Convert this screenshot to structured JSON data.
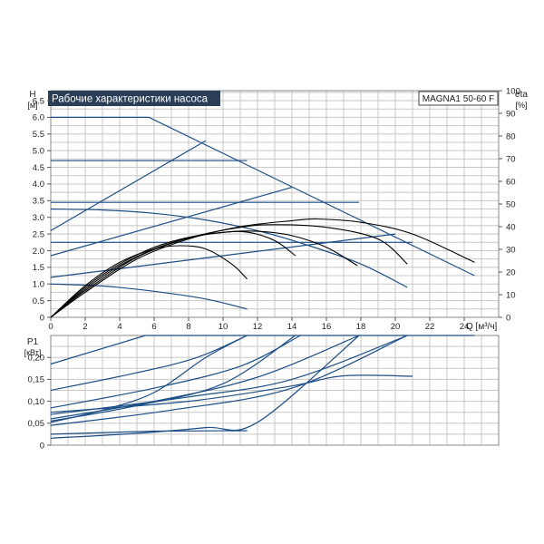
{
  "title": "Рабочие характеристики насоса",
  "model": "MAGNA1 50-60 F",
  "colors": {
    "curve_blue": "#1c4e86",
    "curve_black": "#000000",
    "grid": "#c8c8c8",
    "title_bg": "#2a3f57",
    "title_fg": "#ffffff"
  },
  "chart_data": [
    {
      "id": "head",
      "type": "line",
      "x_label": "Q [м³/ч]",
      "y_label": "H",
      "y_unit": "[м]",
      "y2_label": "eta",
      "y2_unit": "[%]",
      "xlim": [
        0,
        26
      ],
      "ylim": [
        0,
        6.8
      ],
      "y2lim": [
        0,
        100
      ],
      "x_ticks": [
        0,
        2,
        4,
        6,
        8,
        10,
        12,
        14,
        16,
        18,
        20,
        22,
        24
      ],
      "y_ticks": [
        "0",
        "0.5",
        "1.0",
        "1.5",
        "2.0",
        "2.5",
        "3.0",
        "3.5",
        "4.0",
        "4.5",
        "5.0",
        "5.5",
        "6.0",
        "6.5"
      ],
      "y_tick_values": [
        0,
        0.5,
        1.0,
        1.5,
        2.0,
        2.5,
        3.0,
        3.5,
        4.0,
        4.5,
        5.0,
        5.5,
        6.0,
        6.5
      ],
      "y2_ticks": [
        0,
        10,
        20,
        30,
        40,
        50,
        60,
        70,
        80,
        90,
        100
      ],
      "grid": true,
      "series": [
        {
          "color": "blue",
          "points": [
            [
              0,
              6.0
            ],
            [
              5.7,
              6.0
            ],
            [
              24.6,
              1.25
            ]
          ]
        },
        {
          "color": "blue",
          "points": [
            [
              0,
              4.7
            ],
            [
              11.4,
              4.7
            ]
          ]
        },
        {
          "color": "blue",
          "points": [
            [
              0,
              3.45
            ],
            [
              17.9,
              3.45
            ]
          ]
        },
        {
          "color": "blue",
          "points": [
            [
              0,
              2.25
            ],
            [
              21,
              2.25
            ]
          ]
        },
        {
          "color": "blue",
          "points": [
            [
              0,
              2.6
            ],
            [
              9,
              5.3
            ]
          ]
        },
        {
          "color": "blue",
          "points": [
            [
              0,
              1.85
            ],
            [
              14,
              3.9
            ]
          ]
        },
        {
          "color": "blue",
          "points": [
            [
              0,
              1.2
            ],
            [
              20,
              2.5
            ]
          ]
        },
        {
          "color": "blue",
          "points": [
            [
              0,
              3.25
            ],
            [
              3,
              3.22
            ],
            [
              6,
              3.12
            ],
            [
              9,
              2.92
            ],
            [
              12,
              2.6
            ],
            [
              15,
              2.15
            ],
            [
              18,
              1.6
            ],
            [
              20.7,
              0.9
            ]
          ]
        },
        {
          "color": "blue",
          "points": [
            [
              0,
              1.0
            ],
            [
              3,
              0.94
            ],
            [
              6,
              0.78
            ],
            [
              9,
              0.55
            ],
            [
              11.4,
              0.25
            ]
          ]
        },
        {
          "color": "black",
          "points": [
            [
              0,
              0
            ],
            [
              2,
              0.75
            ],
            [
              5,
              1.75
            ],
            [
              8,
              2.35
            ],
            [
              11,
              2.72
            ],
            [
              14,
              2.9
            ],
            [
              15.5,
              2.95
            ],
            [
              18,
              2.85
            ],
            [
              21,
              2.5
            ],
            [
              24.6,
              1.65
            ]
          ]
        },
        {
          "color": "black",
          "points": [
            [
              0,
              0
            ],
            [
              2,
              0.8
            ],
            [
              5,
              1.8
            ],
            [
              8,
              2.38
            ],
            [
              11,
              2.7
            ],
            [
              13,
              2.78
            ],
            [
              16,
              2.7
            ],
            [
              19,
              2.35
            ],
            [
              20.7,
              1.6
            ]
          ]
        },
        {
          "color": "black",
          "points": [
            [
              0,
              0
            ],
            [
              2,
              0.85
            ],
            [
              4,
              1.55
            ],
            [
              6,
              2.05
            ],
            [
              8,
              2.38
            ],
            [
              10,
              2.55
            ],
            [
              12,
              2.58
            ],
            [
              14,
              2.45
            ],
            [
              16,
              2.1
            ],
            [
              17.8,
              1.55
            ]
          ]
        },
        {
          "color": "black",
          "points": [
            [
              0,
              0
            ],
            [
              2,
              0.9
            ],
            [
              4,
              1.6
            ],
            [
              6,
              2.1
            ],
            [
              8,
              2.4
            ],
            [
              10,
              2.55
            ],
            [
              11.5,
              2.55
            ],
            [
              13,
              2.3
            ],
            [
              14.2,
              1.85
            ]
          ]
        },
        {
          "color": "black",
          "points": [
            [
              0,
              0
            ],
            [
              2,
              0.95
            ],
            [
              4,
              1.65
            ],
            [
              6,
              2.05
            ],
            [
              7.5,
              2.15
            ],
            [
              9,
              2.05
            ],
            [
              10.5,
              1.6
            ],
            [
              11.4,
              1.15
            ]
          ]
        }
      ]
    },
    {
      "id": "power",
      "type": "line",
      "y_label": "P1",
      "y_unit": "[кВт]",
      "xlim": [
        0,
        26
      ],
      "ylim": [
        0,
        0.25
      ],
      "y_ticks": [
        "0",
        "0,05",
        "0,10",
        "0,15",
        "0,20"
      ],
      "y_tick_values": [
        0,
        0.05,
        0.1,
        0.15,
        0.2
      ],
      "grid": true,
      "series": [
        {
          "color": "blue",
          "points": [
            [
              0,
              0.185
            ],
            [
              5.5,
              0.25
            ],
            [
              24.6,
              0.25
            ]
          ]
        },
        {
          "color": "blue",
          "points": [
            [
              0,
              0.125
            ],
            [
              5,
              0.165
            ],
            [
              8.5,
              0.2
            ],
            [
              11.4,
              0.25
            ]
          ]
        },
        {
          "color": "blue",
          "points": [
            [
              0,
              0.085
            ],
            [
              6,
              0.13
            ],
            [
              11,
              0.18
            ],
            [
              14.5,
              0.25
            ]
          ]
        },
        {
          "color": "blue",
          "points": [
            [
              0,
              0.06
            ],
            [
              6,
              0.1
            ],
            [
              12,
              0.155
            ],
            [
              17.9,
              0.25
            ]
          ]
        },
        {
          "color": "blue",
          "points": [
            [
              0,
              0.045
            ],
            [
              7,
              0.08
            ],
            [
              14,
              0.13
            ],
            [
              20.7,
              0.25
            ]
          ]
        },
        {
          "color": "blue",
          "points": [
            [
              0,
              0.052
            ],
            [
              3,
              0.08
            ],
            [
              6,
              0.12
            ],
            [
              9,
              0.2
            ],
            [
              11.4,
              0.25
            ]
          ]
        },
        {
          "color": "blue",
          "points": [
            [
              0,
              0.055
            ],
            [
              5,
              0.09
            ],
            [
              10,
              0.14
            ],
            [
              14.2,
              0.25
            ]
          ]
        },
        {
          "color": "blue",
          "points": [
            [
              0,
              0.07
            ],
            [
              8,
              0.11
            ],
            [
              14,
              0.15
            ],
            [
              20.7,
              0.25
            ]
          ]
        },
        {
          "color": "blue",
          "points": [
            [
              0,
              0.075
            ],
            [
              8,
              0.1
            ],
            [
              14,
              0.135
            ],
            [
              17,
              0.158
            ],
            [
              21,
              0.157
            ]
          ]
        },
        {
          "color": "blue",
          "points": [
            [
              0,
              0.025
            ],
            [
              6,
              0.032
            ],
            [
              11.4,
              0.033
            ]
          ]
        },
        {
          "color": "blue",
          "points": [
            [
              0,
              0.016
            ],
            [
              5,
              0.027
            ],
            [
              9,
              0.04
            ],
            [
              12,
              0.052
            ],
            [
              17.9,
              0.25
            ]
          ]
        }
      ]
    }
  ]
}
